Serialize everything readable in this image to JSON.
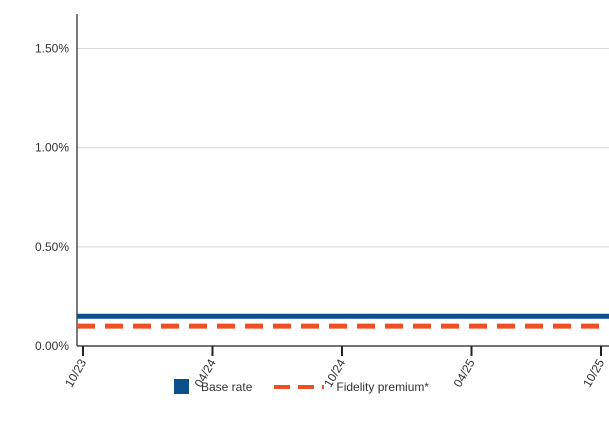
{
  "chart_data": {
    "type": "line",
    "title": "",
    "xlabel": "",
    "ylabel": "",
    "x_tick_labels": [
      "10/23",
      "04/24",
      "10/24",
      "04/25",
      "10/25"
    ],
    "y_tick_labels": [
      "0.00%",
      "0.50%",
      "1.00%",
      "1.50%"
    ],
    "y_ticks": [
      0,
      0.5,
      1.0,
      1.5
    ],
    "ylim": [
      0,
      1.65
    ],
    "grid": true,
    "legend_position": "bottom",
    "series": [
      {
        "name": "Base rate",
        "style": "solid",
        "color": "#0b4f8c",
        "x": [
          "10/23",
          "04/24",
          "10/24",
          "04/25",
          "10/25"
        ],
        "values": [
          0.15,
          0.15,
          0.15,
          0.15,
          0.15
        ]
      },
      {
        "name": "Fidelity premium*",
        "style": "dashed",
        "color": "#f04e23",
        "x": [
          "10/23",
          "04/24",
          "10/24",
          "04/25",
          "10/25"
        ],
        "values": [
          0.1,
          0.1,
          0.1,
          0.1,
          0.1
        ]
      }
    ]
  }
}
